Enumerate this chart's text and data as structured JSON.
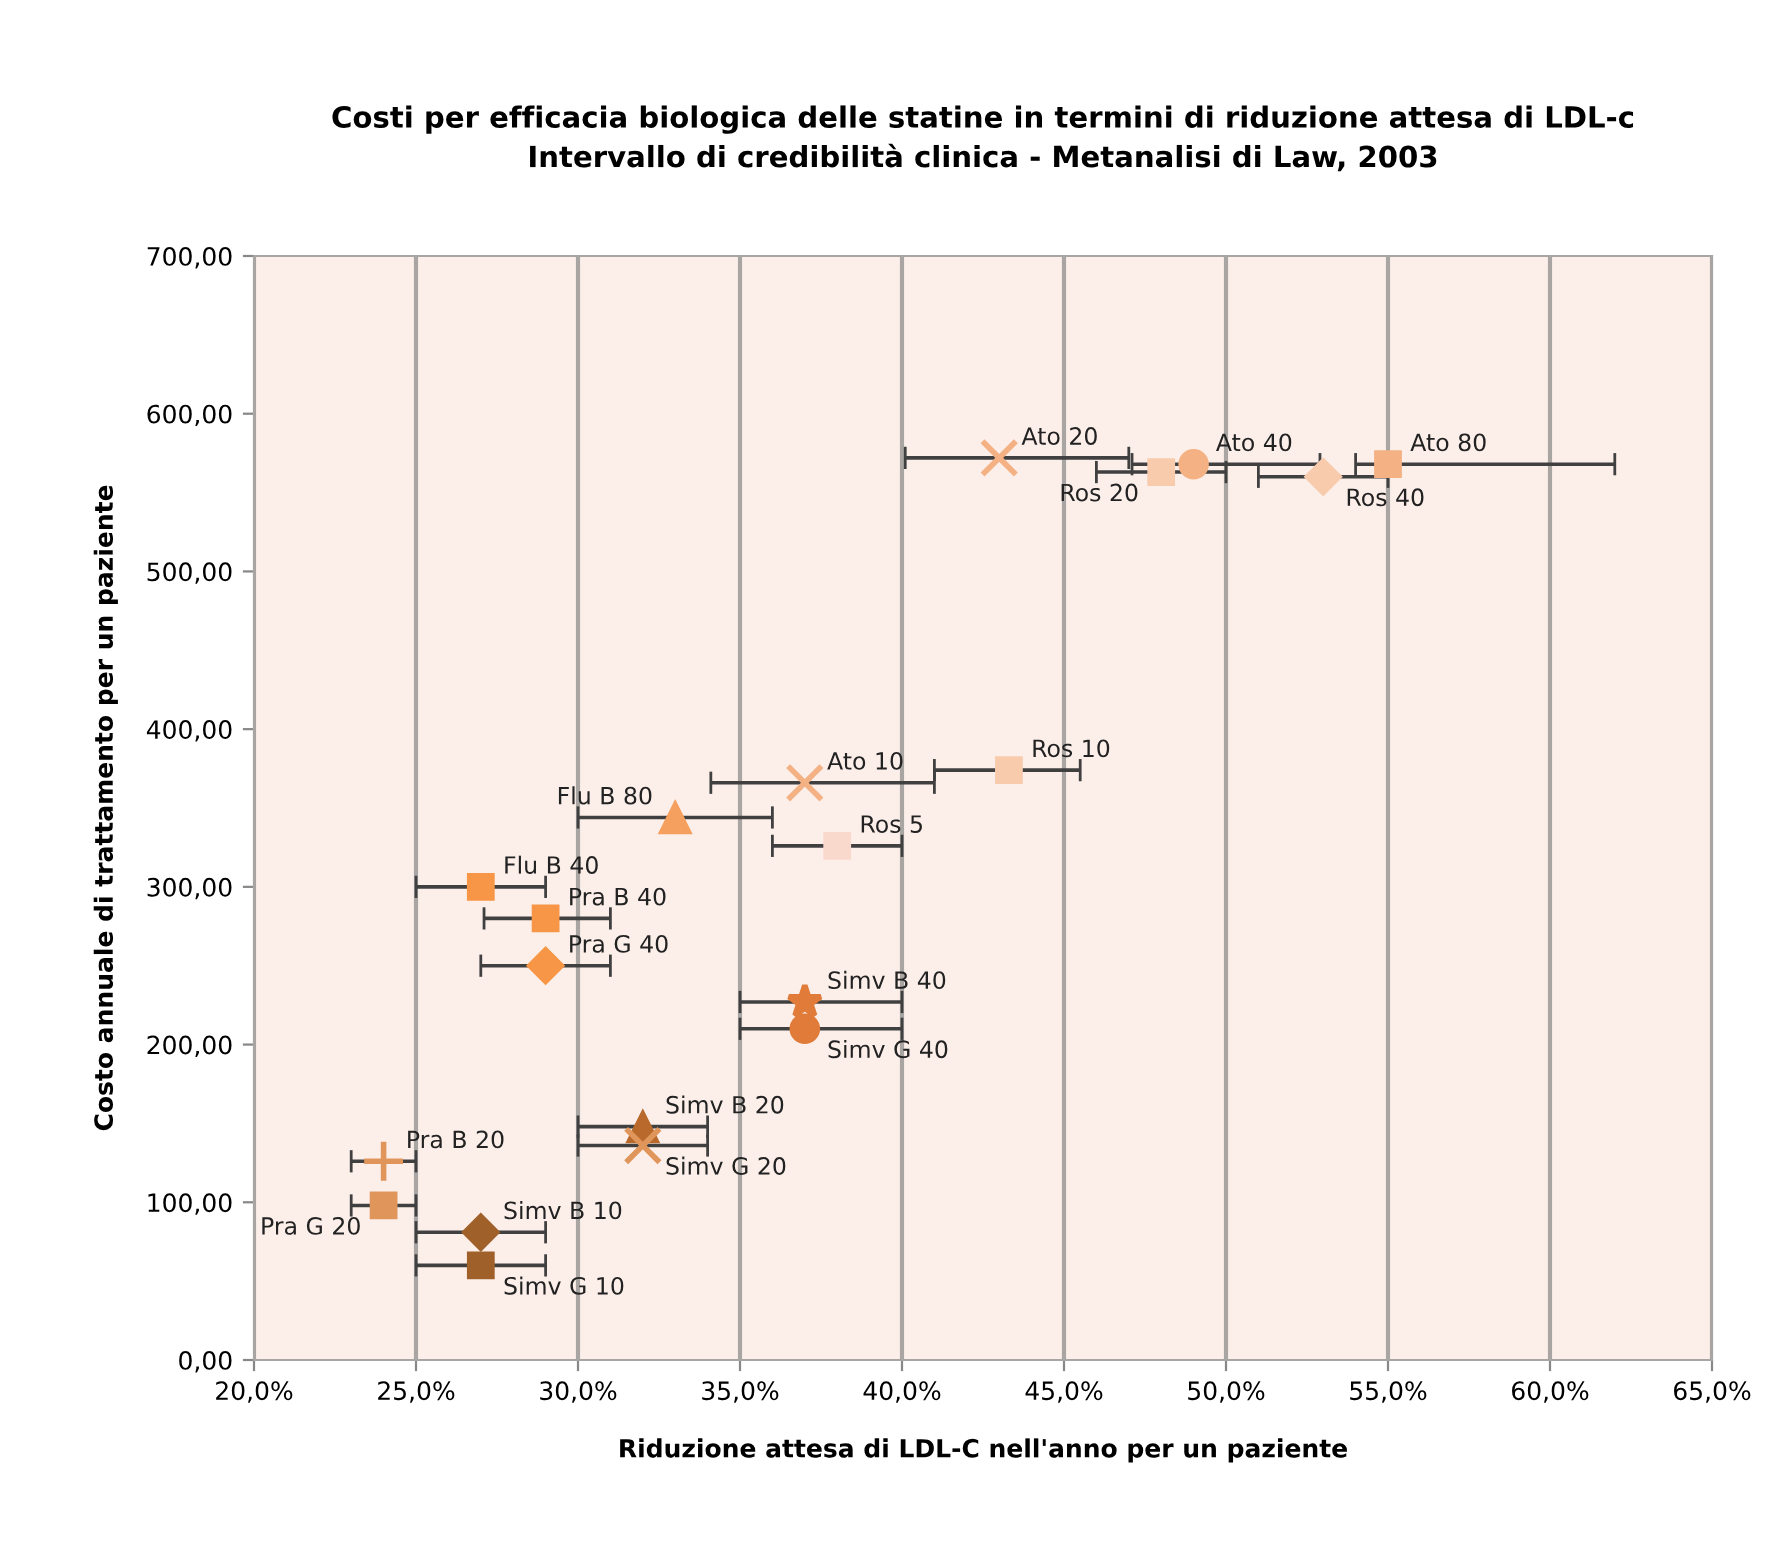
{
  "chart_data": {
    "type": "scatter",
    "title": "Costi per efficacia biologica delle statine in termini di riduzione attesa di LDL-c\nIntervallo di credibilità clinica - Metanalisi di Law, 2003",
    "xlabel": "Riduzione attesa di LDL-C nell'anno per un paziente",
    "ylabel": "Costo annuale di trattamento per un paziente",
    "xlim": [
      20,
      65
    ],
    "ylim": [
      0,
      700
    ],
    "xticks": [
      {
        "value": 20,
        "label": "20,0%"
      },
      {
        "value": 25,
        "label": "25,0%"
      },
      {
        "value": 30,
        "label": "30,0%"
      },
      {
        "value": 35,
        "label": "35,0%"
      },
      {
        "value": 40,
        "label": "40,0%"
      },
      {
        "value": 45,
        "label": "45,0%"
      },
      {
        "value": 50,
        "label": "50,0%"
      },
      {
        "value": 55,
        "label": "55,0%"
      },
      {
        "value": 60,
        "label": "60,0%"
      },
      {
        "value": 65,
        "label": "65,0%"
      }
    ],
    "yticks": [
      {
        "value": 0,
        "label": "0,00"
      },
      {
        "value": 100,
        "label": "100,00"
      },
      {
        "value": 200,
        "label": "200,00"
      },
      {
        "value": 300,
        "label": "300,00"
      },
      {
        "value": 400,
        "label": "400,00"
      },
      {
        "value": 500,
        "label": "500,00"
      },
      {
        "value": 600,
        "label": "600,00"
      },
      {
        "value": 700,
        "label": "700,00"
      }
    ],
    "grid": "x",
    "series": [
      {
        "name": "Ato 20",
        "color": "#f4b183",
        "marker": "cross",
        "x": [
          43
        ],
        "values": [
          572
        ],
        "xerrors": [
          [
            40.1,
            47
          ]
        ]
      },
      {
        "name": "Ato 40",
        "color": "#f4b183",
        "marker": "circle",
        "x": [
          49
        ],
        "values": [
          568
        ],
        "xerrors": [
          [
            47.1,
            52.9
          ]
        ]
      },
      {
        "name": "Ato 80",
        "color": "#f4b183",
        "marker": "square",
        "x": [
          55
        ],
        "values": [
          568
        ],
        "xerrors": [
          [
            54,
            62
          ]
        ]
      },
      {
        "name": "Ros 20",
        "color": "#f8cbad",
        "marker": "square",
        "x": [
          48
        ],
        "values": [
          563
        ],
        "xerrors": [
          [
            46,
            50
          ]
        ]
      },
      {
        "name": "Ros 40",
        "color": "#f8cbad",
        "marker": "diamond",
        "x": [
          53
        ],
        "values": [
          560
        ],
        "xerrors": [
          [
            51,
            55
          ]
        ]
      },
      {
        "name": "Ros 10",
        "color": "#f8cbad",
        "marker": "square",
        "x": [
          43.3
        ],
        "values": [
          374
        ],
        "xerrors": [
          [
            41,
            45.5
          ]
        ]
      },
      {
        "name": "Ato 10",
        "color": "#f4b183",
        "marker": "cross",
        "x": [
          37
        ],
        "values": [
          366
        ],
        "xerrors": [
          [
            34.1,
            41
          ]
        ]
      },
      {
        "name": "Flu B 80",
        "color": "#f5a05e",
        "marker": "triangle",
        "x": [
          33
        ],
        "values": [
          344
        ],
        "xerrors": [
          [
            30,
            36
          ]
        ]
      },
      {
        "name": "Ros 5",
        "color": "#f8d9cb",
        "marker": "square",
        "x": [
          38
        ],
        "values": [
          326
        ],
        "xerrors": [
          [
            36,
            40
          ]
        ]
      },
      {
        "name": "Flu B 40",
        "color": "#f79646",
        "marker": "square",
        "x": [
          27
        ],
        "values": [
          300
        ],
        "xerrors": [
          [
            25,
            29
          ]
        ]
      },
      {
        "name": "Pra B 40",
        "color": "#f79646",
        "marker": "square",
        "x": [
          29
        ],
        "values": [
          280
        ],
        "xerrors": [
          [
            27.1,
            31
          ]
        ]
      },
      {
        "name": "Pra G 40",
        "color": "#f79646",
        "marker": "diamond",
        "x": [
          29
        ],
        "values": [
          250
        ],
        "xerrors": [
          [
            27,
            31
          ]
        ]
      },
      {
        "name": "Simv B 40",
        "color": "#e07b39",
        "marker": "star",
        "x": [
          37
        ],
        "values": [
          227
        ],
        "xerrors": [
          [
            35,
            40
          ]
        ]
      },
      {
        "name": "Simv G 40",
        "color": "#e07b39",
        "marker": "circle",
        "x": [
          37
        ],
        "values": [
          210
        ],
        "xerrors": [
          [
            35,
            40
          ]
        ]
      },
      {
        "name": "Simv B 20",
        "color": "#b8692b",
        "marker": "triangle",
        "x": [
          32
        ],
        "values": [
          148
        ],
        "xerrors": [
          [
            30,
            34
          ]
        ]
      },
      {
        "name": "Simv G 20",
        "color": "#e0955a",
        "marker": "cross",
        "x": [
          32
        ],
        "values": [
          136
        ],
        "xerrors": [
          [
            30,
            34
          ]
        ]
      },
      {
        "name": "Pra B 20",
        "color": "#e0955a",
        "marker": "plus",
        "x": [
          24
        ],
        "values": [
          126
        ],
        "xerrors": [
          [
            23,
            25
          ]
        ]
      },
      {
        "name": "Pra G 20",
        "color": "#e0955a",
        "marker": "square",
        "x": [
          24
        ],
        "values": [
          98
        ],
        "xerrors": [
          [
            23,
            25
          ]
        ]
      },
      {
        "name": "Simv B 10",
        "color": "#a0602a",
        "marker": "diamond",
        "x": [
          27
        ],
        "values": [
          81
        ],
        "xerrors": [
          [
            25,
            29
          ]
        ]
      },
      {
        "name": "Simv G 10",
        "color": "#a0602a",
        "marker": "square",
        "x": [
          27
        ],
        "values": [
          60
        ],
        "xerrors": [
          [
            25,
            29
          ]
        ]
      }
    ]
  }
}
